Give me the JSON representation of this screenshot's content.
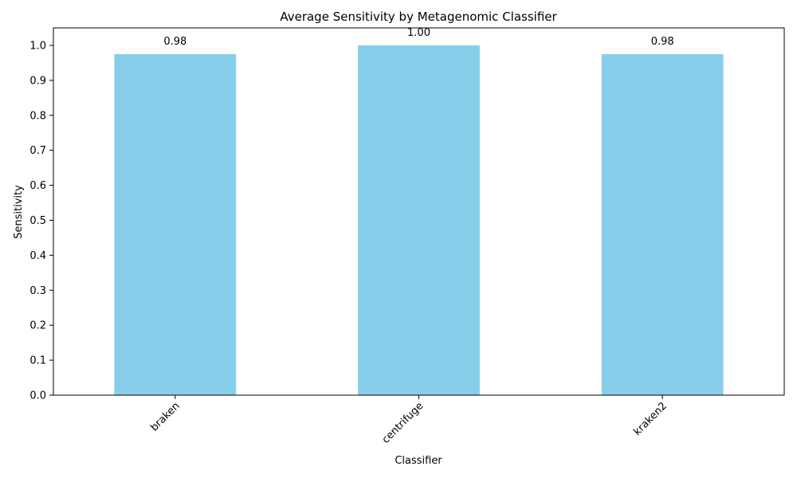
{
  "chart_data": {
    "type": "bar",
    "title": "Average Sensitivity by Metagenomic Classifier",
    "xlabel": "Classifier",
    "ylabel": "Sensitivity",
    "categories": [
      "braken",
      "centrifuge",
      "kraken2"
    ],
    "values": [
      0.975,
      1.0,
      0.975
    ],
    "data_labels": [
      "0.98",
      "1.00",
      "0.98"
    ],
    "ylim": [
      0,
      1.05
    ],
    "yticks": [
      "0.0",
      "0.1",
      "0.2",
      "0.3",
      "0.4",
      "0.5",
      "0.6",
      "0.7",
      "0.8",
      "0.9",
      "1.0"
    ],
    "bar_color": "#87ceeb",
    "grid": false,
    "legend": "none",
    "xtick_rotation": "45 degrees"
  }
}
